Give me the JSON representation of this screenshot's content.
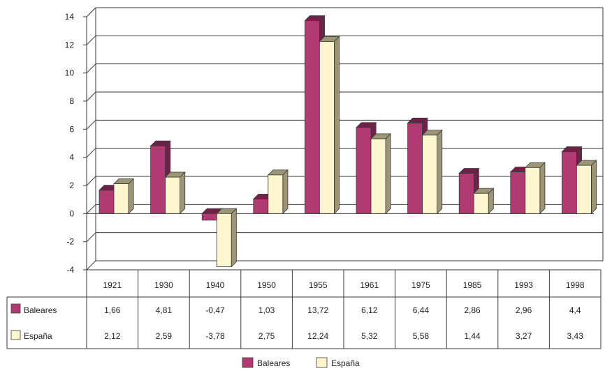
{
  "chart_data": {
    "type": "bar",
    "categories": [
      "1921",
      "1930",
      "1940",
      "1950",
      "1955",
      "1961",
      "1975",
      "1985",
      "1993",
      "1998"
    ],
    "series": [
      {
        "name": "Baleares",
        "values": [
          1.66,
          4.81,
          -0.47,
          1.03,
          13.72,
          6.12,
          6.44,
          2.86,
          2.96,
          4.4
        ],
        "labels": [
          "1,66",
          "4,81",
          "-0,47",
          "1,03",
          "13,72",
          "6,12",
          "6,44",
          "2,86",
          "2,96",
          "4,4"
        ],
        "color": "#b23a72",
        "side_color": "#6e2248"
      },
      {
        "name": "España",
        "values": [
          2.12,
          2.59,
          -3.78,
          2.75,
          12.24,
          5.32,
          5.58,
          1.44,
          3.27,
          3.43
        ],
        "labels": [
          "2,12",
          "2,59",
          "-3,78",
          "2,75",
          "12,24",
          "5,32",
          "5,58",
          "1,44",
          "3,27",
          "3,43"
        ],
        "color": "#fdf6cf",
        "side_color": "#9c9677"
      }
    ],
    "ylim": [
      -4,
      14
    ],
    "yticks": [
      "14",
      "12",
      "10",
      "8",
      "6",
      "4",
      "2",
      "0",
      "-2",
      "-4"
    ],
    "grid": true,
    "legend_position": "bottom-center",
    "data_table": true
  }
}
